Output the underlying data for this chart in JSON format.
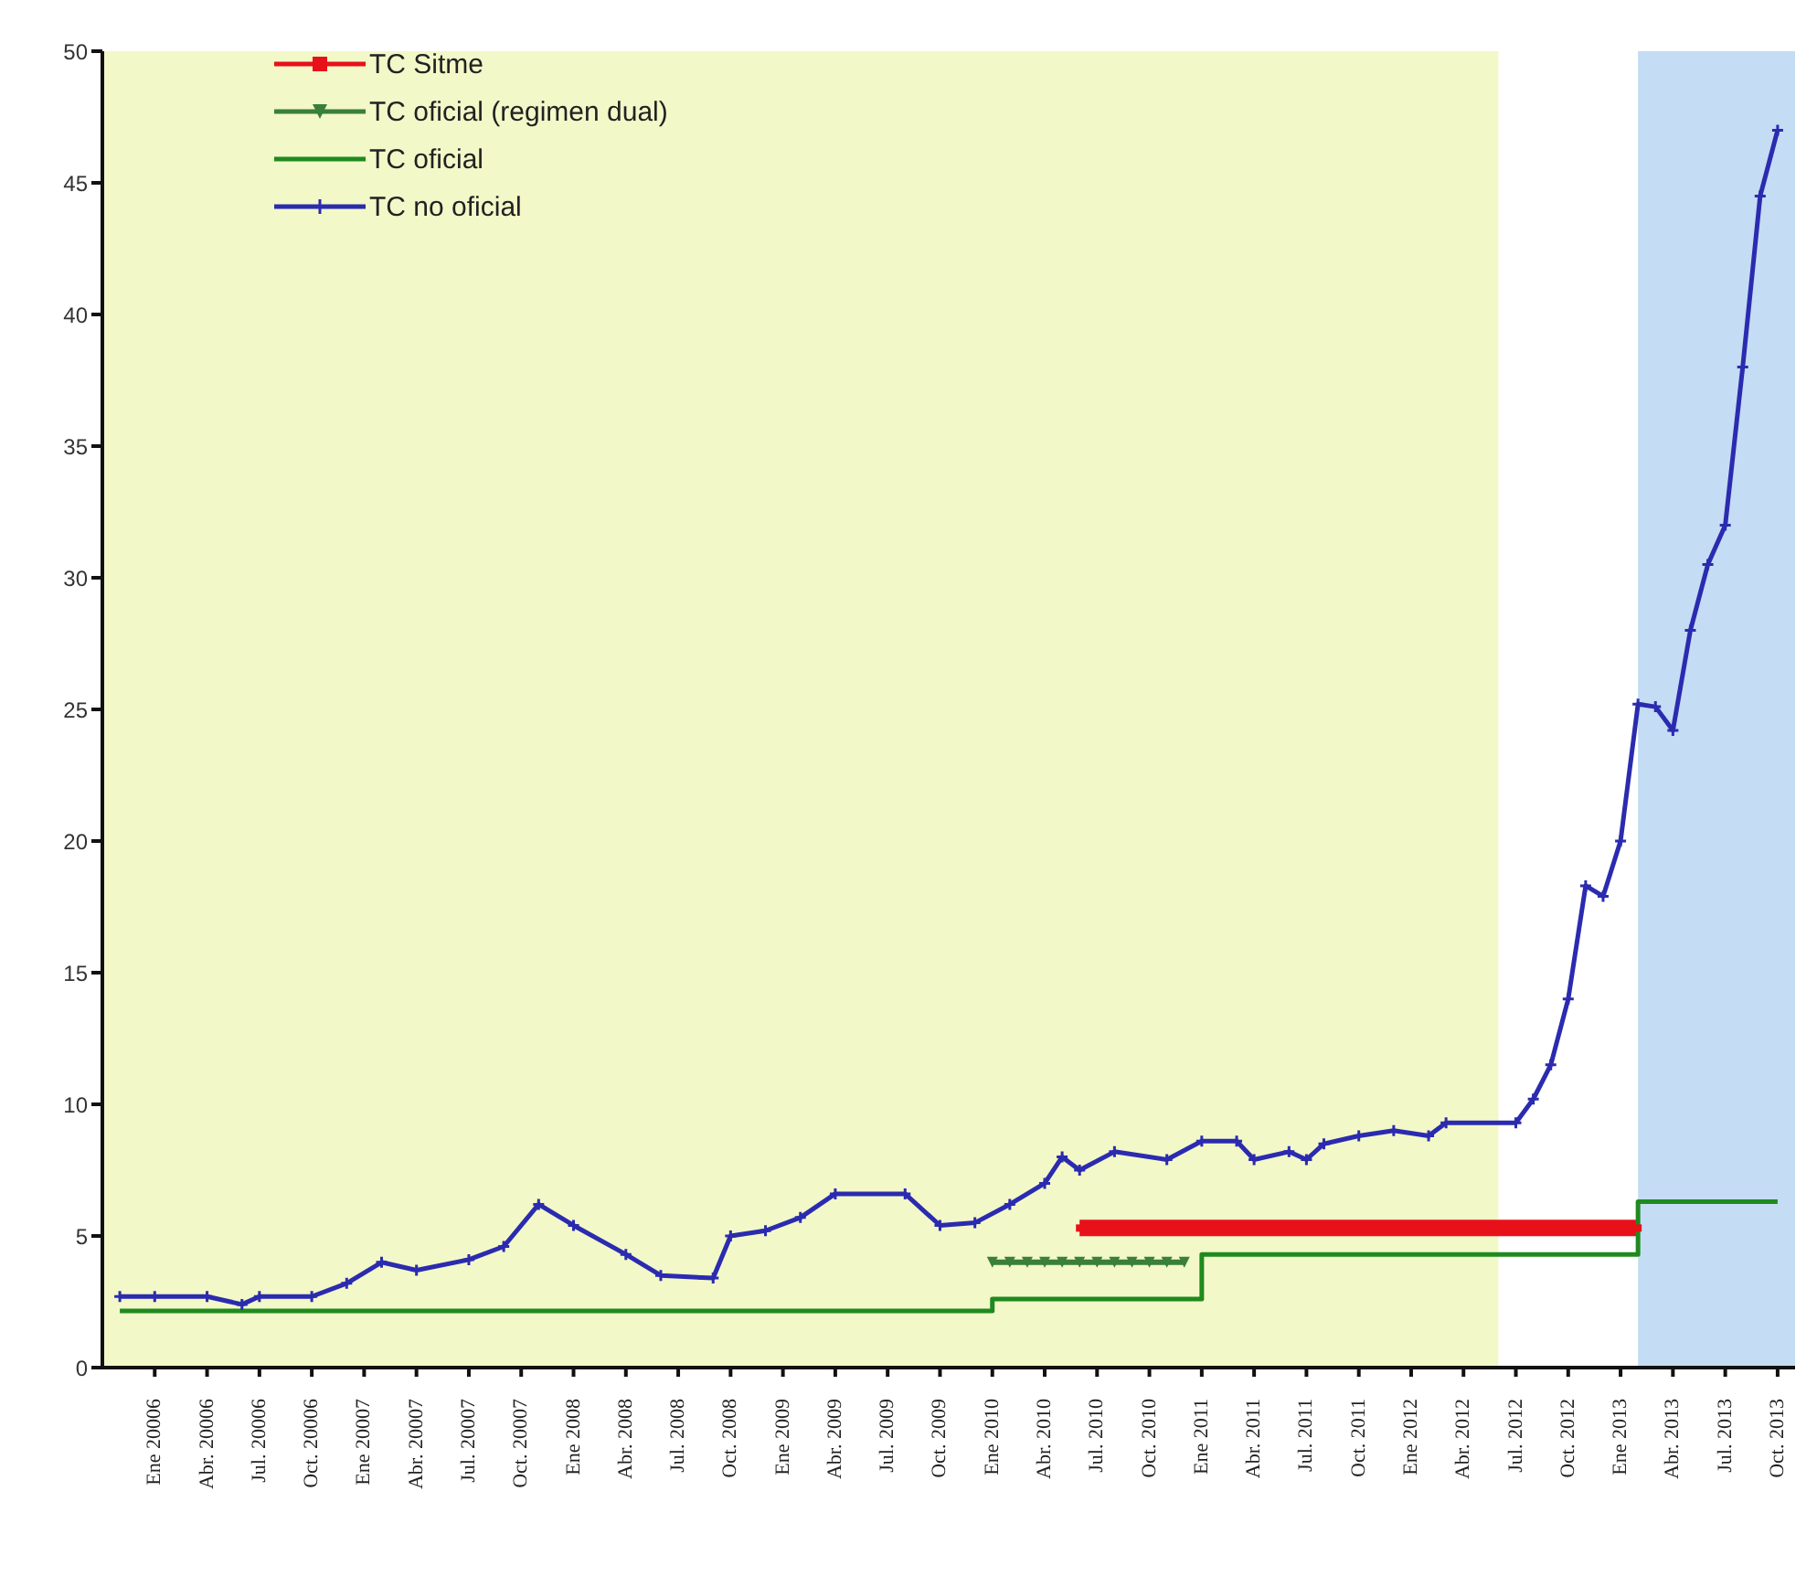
{
  "chart_data": {
    "type": "line",
    "series": [
      {
        "name": "TC Sitme",
        "color": "#e8111a",
        "marker": "square",
        "x": [
          "2010-06",
          "2013-02"
        ],
        "values": [
          5.3,
          5.3
        ]
      },
      {
        "name": "TC oficial  (regimen dual)",
        "color": "#3a7f3a",
        "marker": "triangle",
        "x": [
          "2010-01",
          "2010-02",
          "2010-03",
          "2010-04",
          "2010-05",
          "2010-06",
          "2010-07",
          "2010-08",
          "2010-09",
          "2010-10",
          "2010-11",
          "2010-12"
        ],
        "values": [
          4.0,
          4.0,
          4.0,
          4.0,
          4.0,
          4.0,
          4.0,
          4.0,
          4.0,
          4.0,
          4.0,
          4.0
        ]
      },
      {
        "name": "TC oficial",
        "color": "#1f8a1f",
        "type": "step",
        "marker": "none",
        "x": [
          "2005-11",
          "2010-01",
          "2011-01",
          "2013-02",
          "2013-10"
        ],
        "values": [
          2.15,
          2.6,
          4.3,
          6.3,
          6.3
        ]
      },
      {
        "name": "TC no oficial",
        "color": "#2b2bb0",
        "marker": "cross",
        "x": [
          "2005-11",
          "2006-01",
          "2006-04",
          "2006-06",
          "2006-07",
          "2006-10",
          "2006-12",
          "2007-02",
          "2007-04",
          "2007-07",
          "2007-09",
          "2007-11",
          "2008-01",
          "2008-04",
          "2008-06",
          "2008-09",
          "2008-10",
          "2008-12",
          "2009-02",
          "2009-04",
          "2009-08",
          "2009-10",
          "2009-12",
          "2010-02",
          "2010-04",
          "2010-05",
          "2010-06",
          "2010-08",
          "2010-11",
          "2011-01",
          "2011-03",
          "2011-04",
          "2011-06",
          "2011-07",
          "2011-08",
          "2011-10",
          "2011-12",
          "2012-02",
          "2012-03",
          "2012-07",
          "2012-08",
          "2012-09",
          "2012-10",
          "2012-11",
          "2012-12",
          "2013-01",
          "2013-02",
          "2013-03",
          "2013-04",
          "2013-05",
          "2013-06",
          "2013-07",
          "2013-08",
          "2013-09",
          "2013-10"
        ],
        "values": [
          2.7,
          2.7,
          2.7,
          2.4,
          2.7,
          2.7,
          3.2,
          4.0,
          3.7,
          4.1,
          4.6,
          6.2,
          5.4,
          4.3,
          3.5,
          3.4,
          5.0,
          5.2,
          5.7,
          6.6,
          6.6,
          5.4,
          5.5,
          6.2,
          7.0,
          8.0,
          7.5,
          8.2,
          7.9,
          8.6,
          8.6,
          7.9,
          8.2,
          7.9,
          8.5,
          8.8,
          9.0,
          8.8,
          9.3,
          9.3,
          10.2,
          11.5,
          14.0,
          18.3,
          17.9,
          20.0,
          25.2,
          25.1,
          24.2,
          28.0,
          30.5,
          32.0,
          38.0,
          44.5,
          47.0
        ]
      }
    ],
    "xlim": [
      "2005-10",
      "2013-11"
    ],
    "xticks": [
      {
        "value": "2006-01",
        "label": "Ene 20006"
      },
      {
        "value": "2006-04",
        "label": "Abr. 20006"
      },
      {
        "value": "2006-07",
        "label": "Jul. 20006"
      },
      {
        "value": "2006-10",
        "label": "Oct. 20006"
      },
      {
        "value": "2007-01",
        "label": "Ene 20007"
      },
      {
        "value": "2007-04",
        "label": "Abr. 20007"
      },
      {
        "value": "2007-07",
        "label": "Jul. 20007"
      },
      {
        "value": "2007-10",
        "label": "Oct. 20007"
      },
      {
        "value": "2008-01",
        "label": "Ene 2008"
      },
      {
        "value": "2008-04",
        "label": "Abr. 2008"
      },
      {
        "value": "2008-07",
        "label": "Jul. 2008"
      },
      {
        "value": "2008-10",
        "label": "Oct. 2008"
      },
      {
        "value": "2009-01",
        "label": "Ene 2009"
      },
      {
        "value": "2009-04",
        "label": "Abr. 2009"
      },
      {
        "value": "2009-07",
        "label": "Jul. 2009"
      },
      {
        "value": "2009-10",
        "label": "Oct. 2009"
      },
      {
        "value": "2010-01",
        "label": "Ene 2010"
      },
      {
        "value": "2010-04",
        "label": "Abr. 2010"
      },
      {
        "value": "2010-07",
        "label": "Jul. 2010"
      },
      {
        "value": "2010-10",
        "label": "Oct. 2010"
      },
      {
        "value": "2011-01",
        "label": "Ene 2011"
      },
      {
        "value": "2011-04",
        "label": "Abr. 2011"
      },
      {
        "value": "2011-07",
        "label": "Jul. 2011"
      },
      {
        "value": "2011-10",
        "label": "Oct. 2011"
      },
      {
        "value": "2012-01",
        "label": "Ene 2012"
      },
      {
        "value": "2012-04",
        "label": "Abr. 2012"
      },
      {
        "value": "2012-07",
        "label": "Jul. 2012"
      },
      {
        "value": "2012-10",
        "label": "Oct. 2012"
      },
      {
        "value": "2013-01",
        "label": "Ene 2013"
      },
      {
        "value": "2013-04",
        "label": "Abr. 2013"
      },
      {
        "value": "2013-07",
        "label": "Jul. 2013"
      },
      {
        "value": "2013-10",
        "label": "Oct. 2013"
      }
    ],
    "ylim": [
      0,
      50
    ],
    "yticks": [
      0,
      5,
      10,
      15,
      20,
      25,
      30,
      35,
      40,
      45,
      50
    ],
    "bands": [
      {
        "axis": "x",
        "from": "2005-10",
        "to": "2012-06",
        "color": "#f3f8c8"
      },
      {
        "axis": "x",
        "from": "2013-02",
        "to": "2013-11",
        "color": "#c4dcf4"
      }
    ],
    "legend": "top left",
    "grid": false
  }
}
